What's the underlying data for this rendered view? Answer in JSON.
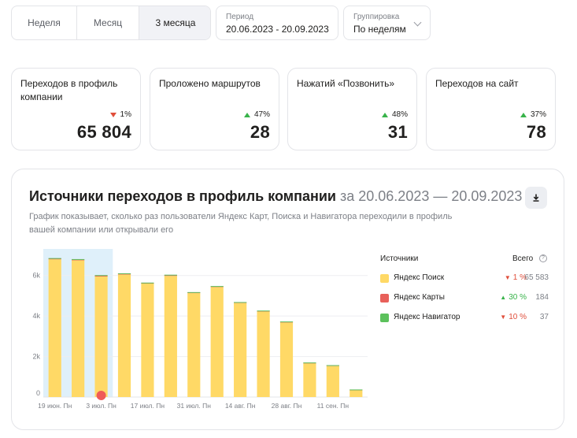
{
  "period_tabs": [
    "Неделя",
    "Месяц",
    "3 месяца"
  ],
  "active_tab": "3 месяца",
  "period": {
    "label": "Период",
    "value": "20.06.2023 - 20.09.2023"
  },
  "grouping": {
    "label": "Группировка",
    "value": "По неделям"
  },
  "metrics": [
    {
      "title": "Переходов в профиль компании",
      "delta": "1%",
      "trend": "down",
      "value": "65 804"
    },
    {
      "title": "Проложено маршрутов",
      "delta": "47%",
      "trend": "up",
      "value": "28"
    },
    {
      "title": "Нажатий «Позвонить»",
      "delta": "48%",
      "trend": "up",
      "value": "31"
    },
    {
      "title": "Переходов на сайт",
      "delta": "37%",
      "trend": "up",
      "value": "78"
    }
  ],
  "panel": {
    "title": "Источники переходов в профиль компании",
    "title_range": "за 20.06.2023 — 20.09.2023",
    "description": "График показывает, сколько раз пользователи Яндекс Карт, Поиска и Навигатора переходили в профиль вашей компании или открывали его",
    "download_icon": "download-icon"
  },
  "legend": {
    "header_sources": "Источники",
    "header_total": "Всего",
    "rows": [
      {
        "name": "Яндекс Поиск",
        "color": "#ffd966",
        "trend": "down",
        "pct": "1 %",
        "total": "65 583"
      },
      {
        "name": "Яндекс Карты",
        "color": "#e8605a",
        "trend": "up",
        "pct": "30 %",
        "total": "184"
      },
      {
        "name": "Яндекс Навигатор",
        "color": "#5cc15c",
        "trend": "down",
        "pct": "10 %",
        "total": "37"
      }
    ]
  },
  "chart_data": {
    "type": "bar",
    "stacked": true,
    "y_ticks": [
      "0",
      "2k",
      "4k",
      "6k"
    ],
    "ylim": [
      0,
      7000
    ],
    "x_tick_labels": [
      "19 июн. Пн",
      "3 июл. Пн",
      "17 июл. Пн",
      "31 июл. Пн",
      "14 авг. Пн",
      "28 авг. Пн",
      "11 сен. Пн"
    ],
    "categories": [
      "19 июн.",
      "26 июн.",
      "3 июл.",
      "10 июл.",
      "17 июл.",
      "24 июл.",
      "31 июл.",
      "7 авг.",
      "14 авг.",
      "21 авг.",
      "28 авг.",
      "4 сен.",
      "11 сен.",
      "18 сен."
    ],
    "series": [
      {
        "name": "Яндекс Поиск",
        "color": "#ffd966",
        "values": [
          6800,
          6750,
          5950,
          6050,
          5600,
          5980,
          5130,
          5430,
          4640,
          4220,
          3680,
          1660,
          1530,
          330
        ]
      },
      {
        "name": "Яндекс Карты",
        "color": "#e8605a",
        "values": [
          20,
          20,
          30,
          20,
          10,
          20,
          10,
          10,
          10,
          10,
          10,
          5,
          5,
          4
        ]
      },
      {
        "name": "Яндекс Навигатор",
        "color": "#5cc15c",
        "values": [
          4,
          3,
          3,
          3,
          3,
          3,
          3,
          3,
          3,
          3,
          3,
          2,
          2,
          1
        ]
      }
    ],
    "highlighted_range": [
      "19 июн.",
      "3 июл."
    ],
    "marker_category": "3 июл.",
    "grid": true
  }
}
